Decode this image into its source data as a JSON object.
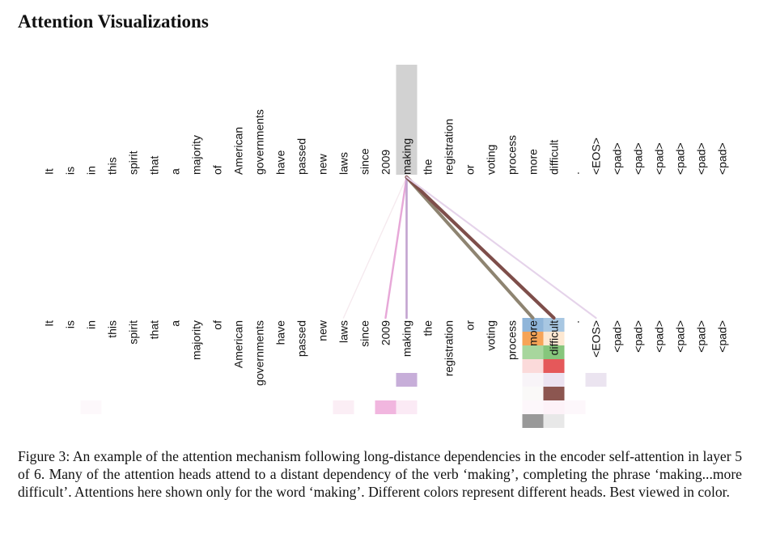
{
  "heading": "Attention Visualizations",
  "tokens": [
    "It",
    "is",
    "in",
    "this",
    "spirit",
    "that",
    "a",
    "majority",
    "of",
    "American",
    "governments",
    "have",
    "passed",
    "new",
    "laws",
    "since",
    "2009",
    "making",
    "the",
    "registration",
    "or",
    "voting",
    "process",
    "more",
    "difficult",
    ".",
    "<EOS>",
    "<pad>",
    "<pad>",
    "<pad>",
    "<pad>",
    "<pad>",
    "<pad>"
  ],
  "focus_token_index": 17,
  "attention_lines": [
    {
      "target": 14,
      "color": "#f5e9ee",
      "weight": 0.1
    },
    {
      "target": 16,
      "color": "#e7a8d8",
      "weight": 0.45
    },
    {
      "target": 17,
      "color": "#c3a4d0",
      "weight": 0.5
    },
    {
      "target": 23,
      "color": "#8e8471",
      "weight": 0.95
    },
    {
      "target": 24,
      "color": "#7e4e4a",
      "weight": 1.0
    },
    {
      "target": 26,
      "color": "#e5d3ea",
      "weight": 0.35
    }
  ],
  "head_cells": [
    {
      "token": 23,
      "row": 0,
      "color": "#8fb5d9"
    },
    {
      "token": 24,
      "row": 0,
      "color": "#a8c7e2"
    },
    {
      "token": 23,
      "row": 1,
      "color": "#f6a457"
    },
    {
      "token": 24,
      "row": 1,
      "color": "#fde8d2"
    },
    {
      "token": 23,
      "row": 2,
      "color": "#a7d69d"
    },
    {
      "token": 24,
      "row": 2,
      "color": "#86c67c"
    },
    {
      "token": 23,
      "row": 3,
      "color": "#fbdada"
    },
    {
      "token": 24,
      "row": 3,
      "color": "#e5585a"
    },
    {
      "token": 17,
      "row": 4,
      "color": "#c7aed9"
    },
    {
      "token": 23,
      "row": 4,
      "color": "#f8f4f8"
    },
    {
      "token": 24,
      "row": 4,
      "color": "#ece3f1"
    },
    {
      "token": 26,
      "row": 4,
      "color": "#ebe4f0"
    },
    {
      "token": 23,
      "row": 5,
      "color": "#faf9f8"
    },
    {
      "token": 24,
      "row": 5,
      "color": "#8c5650"
    },
    {
      "token": 2,
      "row": 6,
      "color": "#fdf8fb"
    },
    {
      "token": 14,
      "row": 6,
      "color": "#fbeef5"
    },
    {
      "token": 16,
      "row": 6,
      "color": "#f1b6df"
    },
    {
      "token": 17,
      "row": 6,
      "color": "#fbeaf5"
    },
    {
      "token": 23,
      "row": 6,
      "color": "#fdf7fb"
    },
    {
      "token": 24,
      "row": 6,
      "color": "#fdf2f8"
    },
    {
      "token": 25,
      "row": 6,
      "color": "#fdf7fb"
    },
    {
      "token": 23,
      "row": 7,
      "color": "#999999"
    },
    {
      "token": 24,
      "row": 7,
      "color": "#e8e8e8"
    }
  ],
  "highlight_color": "#d2d2d2",
  "caption": "Figure 3: An example of the attention mechanism following long-distance dependencies in the encoder self-attention in layer 5 of 6. Many of the attention heads attend to a distant dependency of the verb ‘making’, completing the phrase ‘making...more difficult’. Attentions here shown only for the word ‘making’. Different colors represent different heads. Best viewed in color."
}
